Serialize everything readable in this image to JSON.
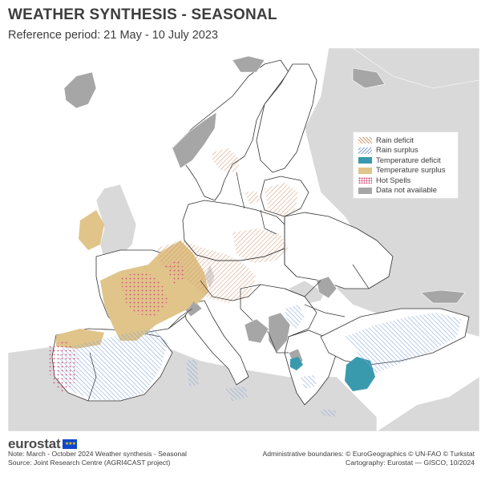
{
  "header": {
    "title": "WEATHER SYNTHESIS - SEASONAL",
    "subtitle": "Reference period: 21 May - 10 July 2023"
  },
  "legend": {
    "items": [
      {
        "label": "Rain deficit",
        "icon": "hatch-orange",
        "color": "#d49a76"
      },
      {
        "label": "Rain surplus",
        "icon": "hatch-blue",
        "color": "#7fa3d8"
      },
      {
        "label": "Temperature deficit",
        "icon": "solid-teal",
        "color": "#3a9aad"
      },
      {
        "label": "Temperature surplus",
        "icon": "solid-beige",
        "color": "#e0c48a"
      },
      {
        "label": "Hot Spells",
        "icon": "dots-red",
        "color": "#d44a7a"
      },
      {
        "label": "Data not available",
        "icon": "solid-grey",
        "color": "#a6a6a6"
      }
    ]
  },
  "footer": {
    "logo_text": "eurostat",
    "note": "Note: March - October 2024 Weather synthesis - Seasonal",
    "source": "Source: Joint Research Centre (AGRI4CAST project)",
    "boundaries": "Administrative boundaries: © EuroGeographics © UN-FAO © Turkstat",
    "cartography": "Cartography: Eurostat — GISCO, 10/2024"
  },
  "colors": {
    "sea": "#ffffff",
    "land_study": "#ffffff",
    "land_outside": "#d9d9d9",
    "no_data": "#a6a6a6",
    "border": "#333333"
  }
}
